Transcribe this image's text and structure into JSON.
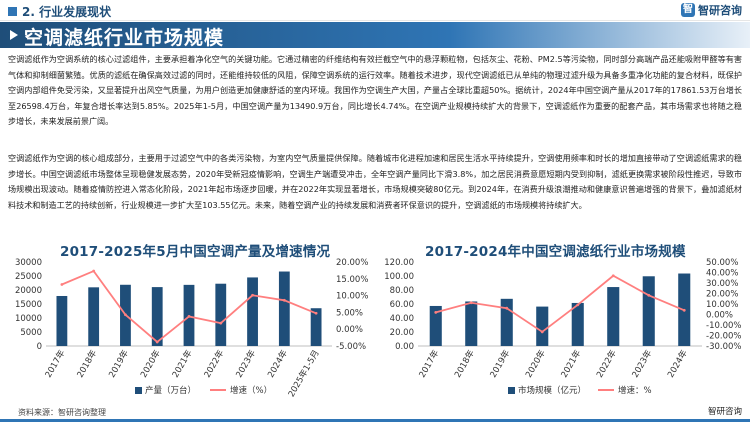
{
  "header": {
    "section": "2. 行业发展现状",
    "logo": "智研咨询",
    "title": "空调滤纸行业市场规模"
  },
  "paragraphs": [
    "空调滤纸作为空调系统的核心过滤组件，主要承担着净化空气的关键功能。它通过精密的纤维结构有效拦截空气中的悬浮颗粒物，包括灰尘、花粉、PM2.5等污染物，同时部分高端产品还能吸附甲醛等有害气体和抑制细菌繁殖。优质的滤纸在确保高效过滤的同时，还能维持较低的风阻，保障空调系统的运行效率。随着技术进步，现代空调滤纸已从单纯的物理过滤升级为具备多重净化功能的复合材料，既保护空调内部组件免受污染，又显著提升出风空气质量，为用户创造更加健康舒适的室内环境。我国作为空调生产大国，产量占全球比重超50%。据统计，2024年中国空调产量从2017年的17861.53万台增长至26598.4万台，年复合增长率达到5.85%。2025年1-5月，中国空调产量为13490.9万台，同比增长4.74%。在空调产业规模持续扩大的背景下，空调滤纸作为重要的配套产品，其市场需求也将随之稳步增长，未来发展前景广阔。",
    "空调滤纸作为空调的核心组成部分，主要用于过滤空气中的各类污染物，为室内空气质量提供保障。随着城市化进程加速和居民生活水平持续提升，空调使用频率和时长的增加直接带动了空调滤纸需求的稳步增长。中国空调滤纸市场整体呈现稳健发展态势，2020年受新冠疫情影响，空调生产端遭受冲击，全年空调产量同比下滑3.8%，加之居民消费意愿短期内受到抑制，滤纸更换需求被阶段性推迟，导致市场规模出现波动。随着疫情防控进入常态化阶段，2021年起市场逐步回暖，并在2022年实现显著增长，市场规模突破80亿元。到2024年，在消费升级浪潮推动和健康意识普遍增强的背景下，叠加滤纸材料技术和制造工艺的持续创新，行业规模进一步扩大至103.55亿元。未来，随着空调产业的持续发展和消费者环保意识的提升，空调滤纸的市场规模将持续扩大。"
  ],
  "charts_text": {
    "left_title": "2017-2025年5月中国空调产量及增速情况",
    "right_title": "2017-2024年中国空调滤纸行业市场规模"
  },
  "chart_data": [
    {
      "type": "bar",
      "title": "2017-2025年5月中国空调产量及增速情况",
      "categories": [
        "2017年",
        "2018年",
        "2019年",
        "2020年",
        "2021年",
        "2022年",
        "2023年",
        "2024年",
        "2025年1-5月"
      ],
      "series": [
        {
          "name": "产量（万台）",
          "type": "bar",
          "axis": "left",
          "values": [
            17861.53,
            20956,
            21866,
            21035,
            21836,
            22247,
            24487,
            26598.4,
            13490.9
          ]
        },
        {
          "name": "增速（%）",
          "type": "line",
          "axis": "right",
          "values": [
            13.3,
            17.3,
            4.3,
            -3.8,
            3.8,
            1.8,
            10.1,
            8.6,
            4.74
          ]
        }
      ],
      "ylim_left": [
        0,
        30000
      ],
      "yticks_left": [
        "0",
        "5000",
        "10000",
        "15000",
        "20000",
        "25000",
        "30000"
      ],
      "ylim_right": [
        -5,
        20
      ],
      "yticks_right": [
        "-5.00%",
        "0.00%",
        "5.00%",
        "10.00%",
        "15.00%",
        "20.00%"
      ],
      "legend": "bottom",
      "colors": {
        "bar": "#1f4e79",
        "line": "#ff7f7f"
      }
    },
    {
      "type": "bar",
      "title": "2017-2024年中国空调滤纸行业市场规模",
      "categories": [
        "2017年",
        "2018年",
        "2019年",
        "2020年",
        "2021年",
        "2022年",
        "2023年",
        "2024年"
      ],
      "series": [
        {
          "name": "市场规模（亿元）",
          "type": "bar",
          "axis": "left",
          "values": [
            57.2,
            63.6,
            67.4,
            56.3,
            61.5,
            84.2,
            99.6,
            103.55
          ]
        },
        {
          "name": "增速：%",
          "type": "line",
          "axis": "right",
          "values": [
            2.0,
            11.2,
            6.0,
            -16.5,
            9.2,
            36.9,
            18.3,
            4.0
          ]
        }
      ],
      "ylim_left": [
        0,
        120
      ],
      "yticks_left": [
        "0.00",
        "20.00",
        "40.00",
        "60.00",
        "80.00",
        "100.00",
        "120.00"
      ],
      "ylim_right": [
        -30,
        50
      ],
      "yticks_right": [
        "-30.00%",
        "-20.00%",
        "-10.00%",
        "0.00%",
        "10.00%",
        "20.00%",
        "30.00%",
        "40.00%",
        "50.00%"
      ],
      "legend": "bottom",
      "colors": {
        "bar": "#1f4e79",
        "line": "#ff7f7f"
      }
    }
  ],
  "legend": {
    "left_bar": "产量（万台）",
    "left_line": "增速（%）",
    "right_bar": "市场规模（亿元）",
    "right_line": "增速：%"
  },
  "footer": {
    "source": "资料来源：智研咨询整理",
    "logo": "智研咨询"
  }
}
